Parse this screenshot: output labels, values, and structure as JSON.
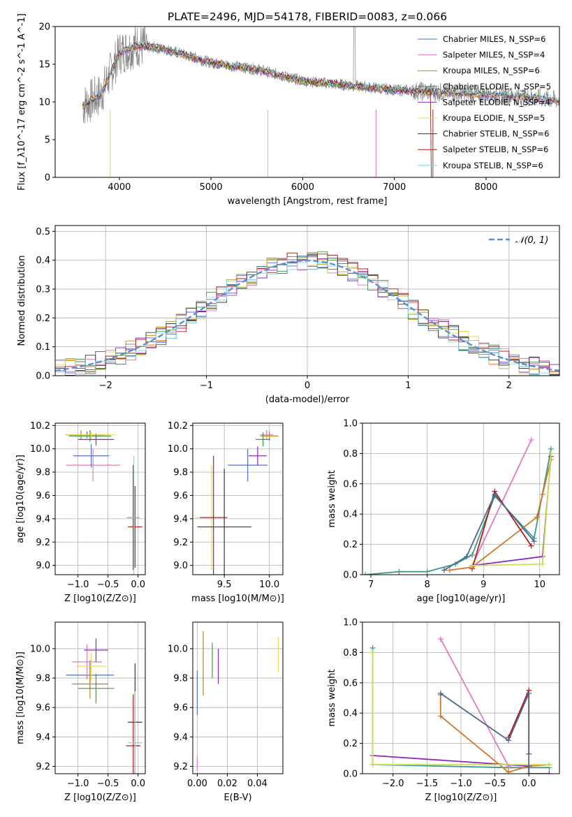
{
  "colors": [
    "#4f6fcf",
    "#e07bbd",
    "#b28a17",
    "#3d9a3d",
    "#8a2bbe",
    "#e8d84f",
    "#3a3a3a",
    "#b31b1b",
    "#7fd3e8"
  ],
  "chart_data": [
    {
      "id": "spectrum",
      "type": "line",
      "title": "PLATE=2496, MJD=54178, FIBERID=0083, z=0.066",
      "xlabel": "wavelength [Angstrom, rest frame]",
      "ylabel": "Flux [f_λ10^-17 erg cm^-2 s^-1 A^-1]",
      "xlim": [
        3300,
        8800
      ],
      "ylim": [
        0,
        20
      ],
      "xticks": [
        "4000",
        "5000",
        "6000",
        "7000",
        "8000"
      ],
      "yticks": [
        "0",
        "5",
        "10",
        "15",
        "20"
      ],
      "legend_position": "upper right",
      "legend": [
        "Chabrier MILES, N_SSP=6",
        "Salpeter MILES, N_SSP=4",
        "Kroupa MILES, N_SSP=6",
        "Chabrier ELODIE, N_SSP=5",
        "Salpeter ELODIE, N_SSP=4",
        "Kroupa ELODIE, N_SSP=5",
        "Chabrier STELIB, N_SSP=6",
        "Salpeter STELIB, N_SSP=6",
        "Kroupa STELIB, N_SSP=6"
      ],
      "data_curve": {
        "x": [
          3600,
          3800,
          4000,
          4200,
          4500,
          5000,
          5500,
          6000,
          6500,
          7000,
          7500,
          8000,
          8500,
          8800
        ],
        "y": [
          9.5,
          11,
          16.5,
          17.5,
          17,
          15.2,
          14.3,
          12.8,
          12.2,
          11.6,
          11.3,
          11.0,
          10.6,
          10.2
        ]
      }
    },
    {
      "id": "residuals",
      "type": "line",
      "xlabel": "(data-model)/error",
      "ylabel": "Normed distribution",
      "xlim": [
        -2.5,
        2.5
      ],
      "ylim": [
        0,
        0.52
      ],
      "xticks": [
        "−2",
        "−1",
        "0",
        "1",
        "2"
      ],
      "yticks": [
        "0.0",
        "0.1",
        "0.2",
        "0.3",
        "0.4",
        "0.5"
      ],
      "legend": [
        "𝒩(0, 1)"
      ],
      "gaussian": {
        "mean": 0,
        "sigma": 1
      }
    },
    {
      "id": "age-vs-Z",
      "type": "scatter",
      "xlabel": "Z [log10(Z/Z⊙)]",
      "ylabel": "age  [log10(age/yr)]",
      "xlim": [
        -1.38,
        0.12
      ],
      "ylim": [
        8.92,
        10.22
      ],
      "xticks": [
        "−1.0",
        "−0.5",
        "0.0"
      ],
      "yticks": [
        "9.0",
        "9.2",
        "9.4",
        "9.6",
        "9.8",
        "10.0",
        "10.2"
      ],
      "points": [
        {
          "x": -0.85,
          "y": 10.12,
          "xerr": 0.28,
          "yerr": 0.03
        },
        {
          "x": -0.75,
          "y": 9.86,
          "xerr": 0.45,
          "yerr": 0.14
        },
        {
          "x": -0.95,
          "y": 10.12,
          "xerr": 0.25,
          "yerr": 0.04
        },
        {
          "x": -0.8,
          "y": 10.11,
          "xerr": 0.35,
          "yerr": 0.05
        },
        {
          "x": -0.7,
          "y": 10.08,
          "xerr": 0.3,
          "yerr": 0.05
        },
        {
          "x": -0.78,
          "y": 10.12,
          "xerr": 0.4,
          "yerr": 0.03
        },
        {
          "x": -0.08,
          "y": 9.41,
          "xerr": 0.1,
          "yerr": 0.45
        },
        {
          "x": -0.05,
          "y": 9.33,
          "xerr": 0.12,
          "yerr": 0.35
        },
        {
          "x": -0.07,
          "y": 9.41,
          "xerr": 0.1,
          "yerr": 0.53
        },
        {
          "x": -0.78,
          "y": 9.94,
          "xerr": 0.3,
          "yerr": 0.1
        }
      ]
    },
    {
      "id": "age-vs-mass",
      "type": "scatter",
      "xlabel": "mass [log10(M/M⊙)]",
      "ylabel": "",
      "xlim": [
        9.15,
        10.15
      ],
      "ylim": [
        8.92,
        10.22
      ],
      "xticks": [
        "9.5",
        "10.0"
      ],
      "yticks": [
        "9.0",
        "9.2",
        "9.4",
        "9.6",
        "9.8",
        "10.0",
        "10.2"
      ],
      "points": [
        {
          "x": 9.76,
          "y": 9.86,
          "xerr": 0.22,
          "yerr": 0.14
        },
        {
          "x": 9.97,
          "y": 10.12,
          "xerr": 0.07,
          "yerr": 0.04
        },
        {
          "x": 10.0,
          "y": 10.11,
          "xerr": 0.1,
          "yerr": 0.04
        },
        {
          "x": 9.93,
          "y": 10.08,
          "xerr": 0.08,
          "yerr": 0.06
        },
        {
          "x": 9.87,
          "y": 9.94,
          "xerr": 0.1,
          "yerr": 0.08
        },
        {
          "x": 9.36,
          "y": 9.41,
          "xerr": 0.18,
          "yerr": 0.45
        },
        {
          "x": 9.5,
          "y": 9.33,
          "xerr": 0.3,
          "yerr": 0.5
        },
        {
          "x": 9.38,
          "y": 9.41,
          "xerr": 0.15,
          "yerr": 0.53
        }
      ]
    },
    {
      "id": "weight-vs-age",
      "type": "line",
      "xlabel": "age  [log10(age/yr)]",
      "ylabel": "mass weight",
      "xlim": [
        6.85,
        10.35
      ],
      "ylim": [
        0,
        1.0
      ],
      "xticks": [
        "7",
        "8",
        "9",
        "10"
      ],
      "yticks": [
        "0.0",
        "0.2",
        "0.4",
        "0.6",
        "0.8",
        "1.0"
      ],
      "series": [
        {
          "x": [
            6.9,
            7.5,
            8.0,
            8.5,
            8.8,
            9.2,
            9.9,
            10.2
          ],
          "y": [
            0.0,
            0.02,
            0.02,
            0.07,
            0.13,
            0.52,
            0.24,
            0.83
          ]
        },
        {
          "x": [
            8.8,
            9.85
          ],
          "y": [
            0.06,
            0.89
          ]
        },
        {
          "x": [
            8.4,
            8.8,
            9.95,
            10.05,
            10.2
          ],
          "y": [
            0.03,
            0.05,
            0.38,
            0.53,
            0.76
          ]
        },
        {
          "x": [
            8.8,
            10.05,
            10.2
          ],
          "y": [
            0.06,
            0.12,
            0.78
          ]
        },
        {
          "x": [
            8.8,
            9.2,
            9.85
          ],
          "y": [
            0.04,
            0.55,
            0.19
          ]
        },
        {
          "x": [
            8.8,
            10.05,
            10.2
          ],
          "y": [
            0.06,
            0.07,
            0.8
          ]
        },
        {
          "x": [
            8.3,
            8.7,
            9.2,
            9.9
          ],
          "y": [
            0.03,
            0.12,
            0.53,
            0.22
          ]
        }
      ]
    },
    {
      "id": "mass-vs-Z",
      "type": "scatter",
      "xlabel": "Z [log10(Z/Z⊙)]",
      "ylabel": "mass [log10(M/M⊙)]",
      "xlim": [
        -1.38,
        0.12
      ],
      "ylim": [
        9.15,
        10.18
      ],
      "xticks": [
        "−1.0",
        "−0.5",
        "0.0"
      ],
      "yticks": [
        "9.2",
        "9.4",
        "9.6",
        "9.8",
        "10.0"
      ],
      "points": [
        {
          "x": -0.8,
          "y": 9.82,
          "xerr": 0.4,
          "yerr": 0.1
        },
        {
          "x": -0.85,
          "y": 9.91,
          "xerr": 0.25,
          "yerr": 0.12
        },
        {
          "x": -0.8,
          "y": 9.76,
          "xerr": 0.3,
          "yerr": 0.1
        },
        {
          "x": -0.7,
          "y": 9.73,
          "xerr": 0.3,
          "yerr": 0.1
        },
        {
          "x": -0.7,
          "y": 9.99,
          "xerr": 0.2,
          "yerr": 0.08
        },
        {
          "x": -0.78,
          "y": 9.88,
          "xerr": 0.25,
          "yerr": 0.1
        },
        {
          "x": -0.05,
          "y": 9.5,
          "xerr": 0.12,
          "yerr": 0.4
        },
        {
          "x": -0.08,
          "y": 9.34,
          "xerr": 0.12,
          "yerr": 0.35
        },
        {
          "x": -0.05,
          "y": 9.36,
          "xerr": 0.12,
          "yerr": 0.35
        }
      ]
    },
    {
      "id": "mass-vs-EBV",
      "type": "scatter",
      "xlabel": "E(B-V)",
      "ylabel": "",
      "xlim": [
        -0.003,
        0.057
      ],
      "ylim": [
        9.15,
        10.18
      ],
      "xticks": [
        "0.00",
        "0.02",
        "0.04"
      ],
      "yticks": [
        "9.2",
        "9.4",
        "9.6",
        "9.8",
        "10.0"
      ],
      "points": [
        {
          "x": 0.0,
          "y": 9.7,
          "yerr": 0.15
        },
        {
          "x": 0.0,
          "y": 9.22,
          "yerr": 0.05
        },
        {
          "x": 0.004,
          "y": 9.9,
          "yerr": 0.22
        },
        {
          "x": 0.01,
          "y": 9.92,
          "yerr": 0.12
        },
        {
          "x": 0.014,
          "y": 9.88,
          "yerr": 0.12
        },
        {
          "x": 0.054,
          "y": 9.96,
          "yerr": 0.12
        }
      ]
    },
    {
      "id": "weight-vs-Z",
      "type": "line",
      "xlabel": "Z [log10(Z/Z⊙)]",
      "ylabel": "mass weight",
      "xlim": [
        -2.45,
        0.45
      ],
      "ylim": [
        0,
        1.0
      ],
      "xticks": [
        "−2.0",
        "−1.5",
        "−1.0",
        "−0.5",
        "0.0"
      ],
      "yticks": [
        "0.0",
        "0.2",
        "0.4",
        "0.6",
        "0.8",
        "1.0"
      ],
      "series": [
        {
          "x": [
            -2.3,
            -2.3,
            -0.3,
            0.3
          ],
          "y": [
            0.83,
            0.06,
            0.04,
            0.04
          ]
        },
        {
          "x": [
            -1.3,
            -0.3
          ],
          "y": [
            0.89,
            0.05
          ]
        },
        {
          "x": [
            -1.3,
            -1.3,
            -0.3,
            0.0,
            0.3
          ],
          "y": [
            0.52,
            0.38,
            0.01,
            0.05,
            0.06
          ]
        },
        {
          "x": [
            -2.3,
            0.0,
            0.0,
            0.3
          ],
          "y": [
            0.12,
            0.05,
            0.0,
            0.0
          ]
        },
        {
          "x": [
            -0.3,
            0.0,
            0.0
          ],
          "y": [
            0.24,
            0.55,
            0.13
          ]
        },
        {
          "x": [
            -2.3,
            -2.3,
            0.3
          ],
          "y": [
            0.8,
            0.06,
            0.06
          ]
        },
        {
          "x": [
            -1.3,
            -0.3,
            0.0,
            0.0
          ],
          "y": [
            0.53,
            0.22,
            0.53,
            0.0
          ]
        }
      ]
    }
  ]
}
